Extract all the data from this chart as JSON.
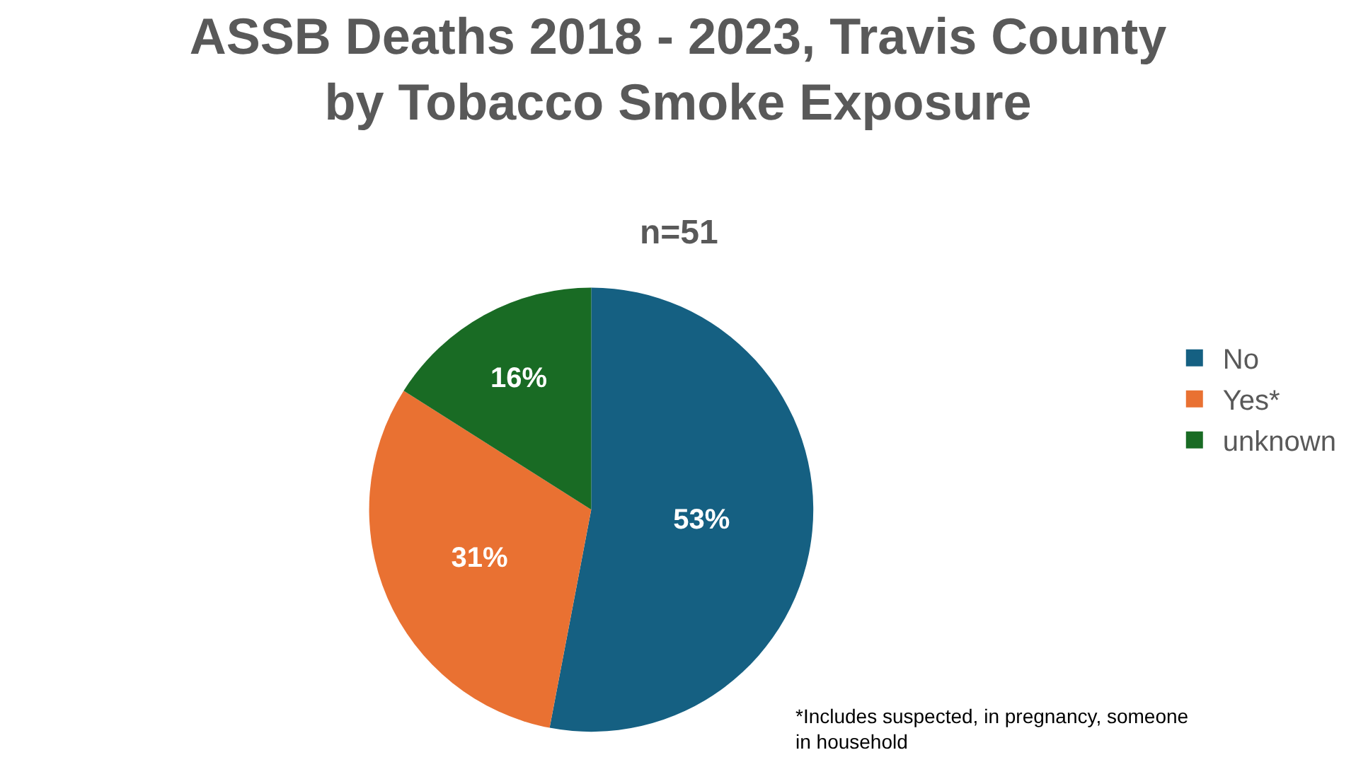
{
  "chart_data": {
    "type": "pie",
    "title": "ASSB Deaths 2018 - 2023, Travis County\nby Tobacco Smoke Exposure",
    "subtitle": "n=51",
    "categories": [
      "No",
      "Yes*",
      "unknown"
    ],
    "values": [
      53,
      31,
      16
    ],
    "value_labels": [
      "53%",
      "31%",
      "16%"
    ],
    "colors": [
      "#156082",
      "#e97132",
      "#196b24"
    ],
    "legend": "right",
    "annotations": [
      "*Includes suspected, in pregnancy, someone\nin household"
    ]
  }
}
